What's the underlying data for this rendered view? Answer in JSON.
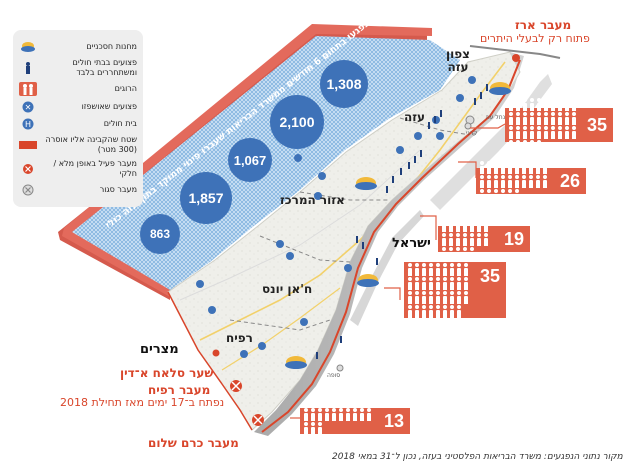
{
  "legend": {
    "items": [
      {
        "label": "מחנות חסכניים",
        "icon": "tent-camp-icon"
      },
      {
        "label": "פצועים בבתי חולים ומשתחררים בלבד",
        "icon": "wounded-person-icon"
      },
      {
        "label": "הרוגים",
        "icon": "killed-icon"
      },
      {
        "label": "פצועים שאושפזו",
        "icon": "hospitalized-icon"
      },
      {
        "label": "בית חולים",
        "icon": "hospital-icon"
      },
      {
        "label": "שטח שהקבינה אליו אוסרה (300 מטר)",
        "icon": "forbidden-zone-icon"
      },
      {
        "label": "מעבר פעיל באופן מלא / חלקי",
        "icon": "active-crossing-icon"
      },
      {
        "label": "מעבר סגור",
        "icon": "closed-crossing-icon"
      }
    ]
  },
  "banner": {
    "text": "נפגעו בתחום 6 חודשים ממשרד הבריאות שעברו פינוי ממוקד בתוך עזה כולל 2012 שלא קיבלו מאז הגבלה"
  },
  "bubbles": [
    "1,308",
    "2,100",
    "1,067",
    "1,857",
    "863"
  ],
  "places": {
    "north_gaza": "צפון עזה",
    "gaza": "עזה",
    "central": "אזור המרכז",
    "khan_yunis": "ח'אן יונס",
    "rafah": "רפיח",
    "israel": "ישראל",
    "egypt": "מצרים",
    "sufa": "סופה",
    "nahal_oz": "נחל עוז",
    "karni": "קרני"
  },
  "crossings": {
    "erez_title": "מעבר ארז",
    "erez_sub": "פתוח רק לבעלי היתרים",
    "salah_title": "שער סלאח א־דין",
    "rafah_title": "מעבר רפיח",
    "rafah_sub": "נפתח ב־17 ימים מאז תחילת 2018",
    "kerem_title": "מעבר כרם שלום"
  },
  "panels": [
    {
      "value": "35",
      "count": 35
    },
    {
      "value": "26",
      "count": 26
    },
    {
      "value": "19",
      "count": 19
    },
    {
      "value": "35",
      "count": 35
    },
    {
      "value": "13",
      "count": 13
    }
  ],
  "source": "מקור נתוני הנפגעים: משרד הבריאות הפלסטיני בעזה, נכון ל־31 במאי 2018",
  "colors": {
    "wall_red": "#e06047",
    "wall_dark": "#c8463b",
    "bubble_blue": "#3e72b8",
    "hatch_blue": "#9cc3e6",
    "accent_red": "#d9462b"
  }
}
